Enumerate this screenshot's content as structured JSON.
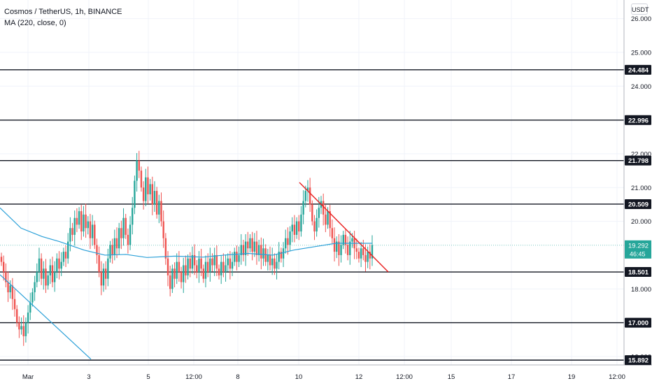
{
  "header": {
    "symbol_line": "Cosmos / TetherUS, 1h, BINANCE",
    "indicator_line": "MA (220, close, 0)",
    "currency_button": "USDT"
  },
  "colors": {
    "up": "#26a69a",
    "down": "#ef5350",
    "ma": "#2ba0d8",
    "trendline": "#e91e1e",
    "level": "#131722",
    "last_price_bg": "#26a69a"
  },
  "chart_data": {
    "type": "candlestick",
    "title": "Cosmos / TetherUS, 1h, BINANCE",
    "ylim": [
      15.75,
      26.55
    ],
    "y_ticks": [
      {
        "value": 26.0,
        "label": "26.000"
      },
      {
        "value": 25.0,
        "label": "25.000"
      },
      {
        "value": 24.0,
        "label": "24.000"
      },
      {
        "value": 22.0,
        "label": "22.000"
      },
      {
        "value": 21.0,
        "label": "21.000"
      },
      {
        "value": 20.0,
        "label": "20.000"
      },
      {
        "value": 18.0,
        "label": "18.000"
      },
      {
        "value": 17.0,
        "label": "17.000"
      },
      {
        "value": 16.0,
        "label": "16.000"
      }
    ],
    "x_ticks": [
      "Mar",
      "3",
      "5",
      "12:00",
      "8",
      "10",
      "12",
      "12:00",
      "15",
      "17",
      "19",
      "12:00"
    ],
    "horizontal_levels": [
      {
        "value": 24.484,
        "label": "24.484"
      },
      {
        "value": 22.996,
        "label": "22.996"
      },
      {
        "value": 21.798,
        "label": "21.798"
      },
      {
        "value": 20.509,
        "label": "20.509"
      },
      {
        "value": 18.501,
        "label": "18.501"
      },
      {
        "value": 17.0,
        "label": "17.000"
      },
      {
        "value": 15.892,
        "label": "15.892"
      }
    ],
    "last_price": {
      "value": 19.292,
      "label": "19.292",
      "countdown": "46:45"
    },
    "candle_closes": [
      18.8,
      18.5,
      18.2,
      17.9,
      18.1,
      17.7,
      17.4,
      17.0,
      16.8,
      16.9,
      16.6,
      17.0,
      17.3,
      17.6,
      17.9,
      18.2,
      18.5,
      18.9,
      18.3,
      18.6,
      18.1,
      18.4,
      18.7,
      18.2,
      18.5,
      18.9,
      18.6,
      18.8,
      19.1,
      18.9,
      19.4,
      19.8,
      19.6,
      20.1,
      19.9,
      20.3,
      19.7,
      20.2,
      19.8,
      20.0,
      19.5,
      19.9,
      19.3,
      19.0,
      18.5,
      18.1,
      18.6,
      18.3,
      18.9,
      19.3,
      19.0,
      19.5,
      19.2,
      19.8,
      19.5,
      20.1,
      19.6,
      19.3,
      19.9,
      20.4,
      21.2,
      21.8,
      21.5,
      21.0,
      20.6,
      21.3,
      20.8,
      21.1,
      20.5,
      20.9,
      20.2,
      20.6,
      20.0,
      19.5,
      18.9,
      18.4,
      18.0,
      18.6,
      18.3,
      18.8,
      18.5,
      18.2,
      18.7,
      18.4,
      18.9,
      18.6,
      19.0,
      18.7,
      18.5,
      18.9,
      18.6,
      18.3,
      18.8,
      18.5,
      18.9,
      18.7,
      19.0,
      18.6,
      18.4,
      18.8,
      18.5,
      18.7,
      18.9,
      18.6,
      18.8,
      19.1,
      18.8,
      19.0,
      19.3,
      19.0,
      19.4,
      19.2,
      19.5,
      19.1,
      19.4,
      19.0,
      19.3,
      18.9,
      19.2,
      18.8,
      19.0,
      18.7,
      18.9,
      18.6,
      18.8,
      19.1,
      18.9,
      19.2,
      19.5,
      19.3,
      19.7,
      19.9,
      19.6,
      20.0,
      19.7,
      20.2,
      20.6,
      20.9,
      21.0,
      20.5,
      20.0,
      19.7,
      20.1,
      20.4,
      20.6,
      20.2,
      19.9,
      20.3,
      19.8,
      19.5,
      19.1,
      19.4,
      19.0,
      19.3,
      19.6,
      19.3,
      19.0,
      19.4,
      19.5,
      19.2,
      19.1,
      18.9,
      19.2,
      19.0,
      18.8,
      19.1,
      18.9,
      19.3
    ],
    "ma_220": [
      [
        0,
        20.4
      ],
      [
        30,
        19.8
      ],
      [
        60,
        19.55
      ],
      [
        85,
        19.4
      ],
      [
        120,
        19.15
      ],
      [
        150,
        19.0
      ],
      [
        180,
        19.02
      ],
      [
        210,
        18.93
      ],
      [
        250,
        18.97
      ],
      [
        290,
        18.94
      ],
      [
        320,
        19.0
      ],
      [
        355,
        19.05
      ],
      [
        390,
        19.0
      ],
      [
        420,
        19.15
      ],
      [
        450,
        19.25
      ],
      [
        480,
        19.35
      ],
      [
        532,
        19.35
      ]
    ],
    "lower_trend_line": [
      [
        0,
        18.42
      ],
      [
        130,
        15.92
      ]
    ],
    "falling_trend_line": [
      [
        428,
        21.15
      ],
      [
        555,
        18.501
      ]
    ]
  }
}
